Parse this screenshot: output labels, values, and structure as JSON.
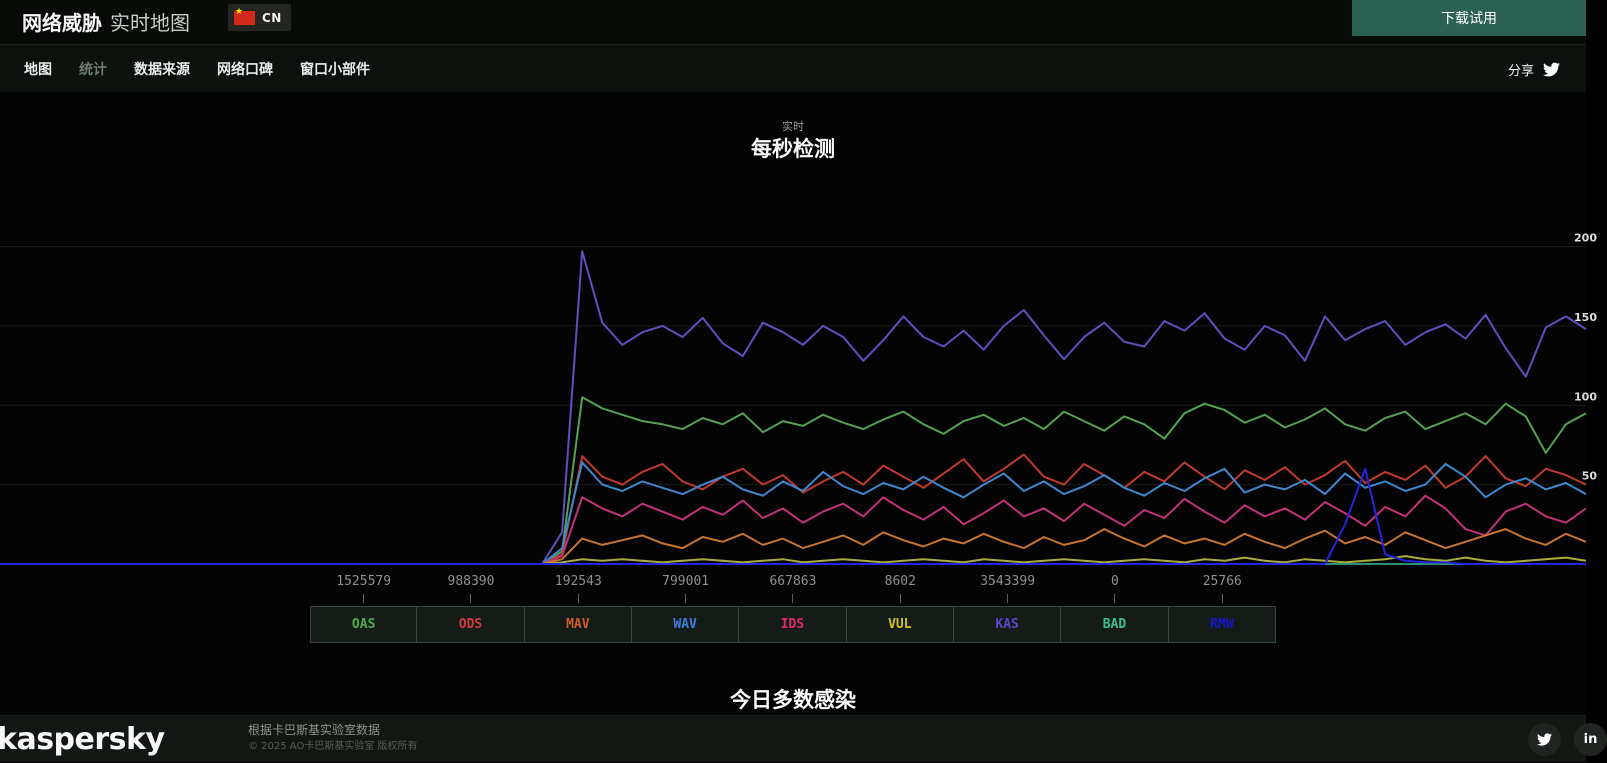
{
  "header": {
    "brand_primary": "网络威胁",
    "brand_secondary": "实时地图",
    "language": "CN",
    "download_button": "下载试用"
  },
  "nav": {
    "tabs": [
      {
        "label": "地图",
        "active": false
      },
      {
        "label": "统计",
        "active": true
      },
      {
        "label": "数据来源",
        "active": false
      },
      {
        "label": "网络口碑",
        "active": false
      },
      {
        "label": "窗口小部件",
        "active": false
      }
    ],
    "share_label": "分享"
  },
  "stats": {
    "subtitle": "实时",
    "title": "每秒检测",
    "section_heading": "今日多数感染"
  },
  "legend": [
    {
      "code": "OAS",
      "value": "1525579",
      "color": "#4fae4f"
    },
    {
      "code": "ODS",
      "value": "988390",
      "color": "#d23a44"
    },
    {
      "code": "MAV",
      "value": "192543",
      "color": "#cf5a26"
    },
    {
      "code": "WAV",
      "value": "799001",
      "color": "#3f7fdc"
    },
    {
      "code": "IDS",
      "value": "667863",
      "color": "#e0296d"
    },
    {
      "code": "VUL",
      "value": "8602",
      "color": "#cfc22a"
    },
    {
      "code": "KAS",
      "value": "3543399",
      "color": "#5b46d0"
    },
    {
      "code": "BAD",
      "value": "0",
      "color": "#3cbd8d"
    },
    {
      "code": "RMW",
      "value": "25766",
      "color": "#1616cf"
    }
  ],
  "chart_data": {
    "type": "line",
    "title": "每秒检测",
    "subtitle": "实时",
    "ylim": [
      0,
      200
    ],
    "yticks": [
      50,
      100,
      150,
      200
    ],
    "grid": true,
    "legend_position": "bottom",
    "series": [
      {
        "name": "KAS",
        "color": "#5c50c0",
        "values": [
          0,
          0,
          0,
          0,
          0,
          0,
          0,
          0,
          0,
          0,
          0,
          0,
          0,
          0,
          0,
          0,
          0,
          0,
          0,
          0,
          0,
          0,
          0,
          0,
          0,
          0,
          0,
          0,
          20,
          197,
          152,
          138,
          146,
          150,
          143,
          155,
          139,
          131,
          152,
          146,
          138,
          150,
          143,
          128,
          141,
          156,
          143,
          137,
          147,
          135,
          150,
          160,
          144,
          129,
          143,
          152,
          140,
          137,
          153,
          147,
          158,
          142,
          135,
          150,
          144,
          128,
          156,
          141,
          148,
          153,
          138,
          146,
          151,
          142,
          157,
          136,
          118,
          149,
          156,
          148
        ]
      },
      {
        "name": "OAS",
        "color": "#55a153",
        "values": [
          0,
          0,
          0,
          0,
          0,
          0,
          0,
          0,
          0,
          0,
          0,
          0,
          0,
          0,
          0,
          0,
          0,
          0,
          0,
          0,
          0,
          0,
          0,
          0,
          0,
          0,
          0,
          0,
          8,
          105,
          98,
          94,
          90,
          88,
          85,
          92,
          88,
          95,
          83,
          90,
          87,
          94,
          89,
          85,
          91,
          96,
          88,
          82,
          90,
          94,
          87,
          92,
          85,
          96,
          90,
          84,
          93,
          88,
          79,
          95,
          101,
          97,
          89,
          94,
          86,
          91,
          98,
          88,
          84,
          92,
          96,
          85,
          90,
          95,
          88,
          101,
          93,
          70,
          88,
          95
        ]
      },
      {
        "name": "ODS",
        "color": "#bf3a2e",
        "values": [
          0,
          0,
          0,
          0,
          0,
          0,
          0,
          0,
          0,
          0,
          0,
          0,
          0,
          0,
          0,
          0,
          0,
          0,
          0,
          0,
          0,
          0,
          0,
          0,
          0,
          0,
          0,
          0,
          6,
          68,
          55,
          50,
          58,
          63,
          52,
          47,
          55,
          60,
          50,
          56,
          45,
          52,
          58,
          50,
          62,
          55,
          48,
          57,
          66,
          52,
          60,
          69,
          55,
          50,
          63,
          56,
          48,
          58,
          52,
          64,
          55,
          47,
          59,
          53,
          61,
          50,
          56,
          65,
          51,
          58,
          53,
          62,
          48,
          55,
          68,
          54,
          49,
          60,
          56,
          50
        ]
      },
      {
        "name": "WAV",
        "color": "#3f86cf",
        "values": [
          0,
          0,
          0,
          0,
          0,
          0,
          0,
          0,
          0,
          0,
          0,
          0,
          0,
          0,
          0,
          0,
          0,
          0,
          0,
          0,
          0,
          0,
          0,
          0,
          0,
          0,
          0,
          0,
          10,
          64,
          50,
          46,
          52,
          48,
          44,
          50,
          55,
          47,
          43,
          52,
          46,
          58,
          49,
          44,
          51,
          47,
          55,
          48,
          42,
          50,
          57,
          46,
          52,
          44,
          49,
          56,
          48,
          43,
          51,
          46,
          54,
          60,
          45,
          50,
          47,
          53,
          44,
          57,
          48,
          52,
          46,
          50,
          63,
          55,
          42,
          50,
          54,
          47,
          51,
          44
        ]
      },
      {
        "name": "IDS",
        "color": "#c13379",
        "values": [
          0,
          0,
          0,
          0,
          0,
          0,
          0,
          0,
          0,
          0,
          0,
          0,
          0,
          0,
          0,
          0,
          0,
          0,
          0,
          0,
          0,
          0,
          0,
          0,
          0,
          0,
          0,
          0,
          5,
          42,
          35,
          30,
          38,
          33,
          28,
          36,
          31,
          40,
          29,
          35,
          26,
          33,
          38,
          30,
          42,
          34,
          28,
          36,
          25,
          32,
          40,
          30,
          35,
          27,
          38,
          31,
          24,
          34,
          29,
          41,
          33,
          26,
          37,
          30,
          35,
          28,
          39,
          32,
          24,
          36,
          30,
          43,
          35,
          22,
          18,
          33,
          38,
          30,
          26,
          35
        ]
      },
      {
        "name": "MAV",
        "color": "#c8742f",
        "values": [
          0,
          0,
          0,
          0,
          0,
          0,
          0,
          0,
          0,
          0,
          0,
          0,
          0,
          0,
          0,
          0,
          0,
          0,
          0,
          0,
          0,
          0,
          0,
          0,
          0,
          0,
          0,
          0,
          3,
          16,
          12,
          15,
          18,
          13,
          10,
          17,
          14,
          19,
          12,
          16,
          10,
          14,
          18,
          12,
          20,
          15,
          11,
          16,
          13,
          19,
          14,
          10,
          17,
          12,
          15,
          22,
          16,
          11,
          18,
          13,
          16,
          12,
          19,
          14,
          10,
          16,
          21,
          13,
          17,
          12,
          20,
          15,
          10,
          14,
          18,
          22,
          16,
          12,
          19,
          14
        ]
      },
      {
        "name": "VUL",
        "color": "#a9ad3c",
        "values": [
          0,
          0,
          0,
          0,
          0,
          0,
          0,
          0,
          0,
          0,
          0,
          0,
          0,
          0,
          0,
          0,
          0,
          0,
          0,
          0,
          0,
          0,
          0,
          0,
          0,
          0,
          0,
          0,
          1,
          3,
          2,
          3,
          2,
          1,
          2,
          3,
          2,
          1,
          2,
          3,
          1,
          2,
          3,
          2,
          1,
          2,
          3,
          2,
          1,
          3,
          2,
          1,
          2,
          3,
          2,
          1,
          2,
          3,
          2,
          1,
          3,
          2,
          4,
          2,
          1,
          3,
          2,
          1,
          2,
          3,
          5,
          3,
          2,
          4,
          2,
          1,
          2,
          3,
          4,
          2
        ]
      },
      {
        "name": "BAD",
        "color": "#2e8f74",
        "values": [
          0,
          0,
          0,
          0,
          0,
          0,
          0,
          0,
          0,
          0,
          0,
          0,
          0,
          0,
          0,
          0,
          0,
          0,
          0,
          0,
          0,
          0,
          0,
          0,
          0,
          0,
          0,
          0,
          0,
          0,
          0,
          0,
          0,
          0,
          0,
          0,
          0,
          0,
          0,
          0,
          0,
          0,
          0,
          0,
          0,
          0,
          0,
          0,
          0,
          0,
          0,
          0,
          0,
          0,
          0,
          0,
          0,
          0,
          0,
          0,
          0,
          0,
          0,
          0,
          0,
          0,
          0,
          0,
          0,
          0,
          0,
          0,
          0,
          0,
          0,
          0,
          0,
          0,
          0,
          0
        ]
      },
      {
        "name": "RMW",
        "color": "#2424dd",
        "values": [
          0,
          0,
          0,
          0,
          0,
          0,
          0,
          0,
          0,
          0,
          0,
          0,
          0,
          0,
          0,
          0,
          0,
          0,
          0,
          0,
          0,
          0,
          0,
          0,
          0,
          0,
          0,
          0,
          0,
          0,
          0,
          0,
          0,
          0,
          0,
          0,
          0,
          0,
          0,
          0,
          0,
          0,
          0,
          0,
          0,
          0,
          0,
          0,
          0,
          0,
          0,
          0,
          0,
          0,
          0,
          0,
          0,
          0,
          0,
          0,
          0,
          0,
          0,
          0,
          0,
          0,
          0,
          25,
          60,
          6,
          2,
          1,
          1,
          0,
          0,
          0,
          0,
          0,
          0,
          0
        ]
      }
    ]
  },
  "footer": {
    "logo": "kaspersky",
    "credit_line1": "根据卡巴斯基实验室数据",
    "credit_line2": "© 2025 AO卡巴斯基实验室 版权所有"
  }
}
